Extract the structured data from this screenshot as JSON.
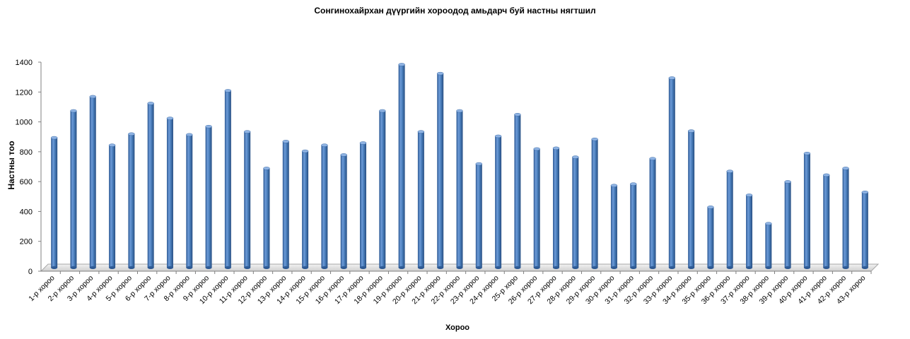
{
  "chart_data": {
    "type": "bar",
    "title": "Сонгинохайрхан дүүргийн хороодод амьдарч буй настны нягтшил",
    "xlabel": "Хороо",
    "ylabel": "Настны тоо",
    "ylim": [
      0,
      1400
    ],
    "yticks": [
      0,
      200,
      400,
      600,
      800,
      1000,
      1200,
      1400
    ],
    "grid": false,
    "legend": "none",
    "bar_color": "#4a7ebb",
    "categories": [
      "1-р хороо",
      "2-р хороо",
      "3-р хороо",
      "4-р хороо",
      "5-р хороо",
      "6-р хороо",
      "7-р хороо",
      "8-р хороо",
      "9-р хороо",
      "10-р хороо",
      "11-р хороо",
      "12-р хороо",
      "13-р хороо",
      "14-р хороо",
      "15-р хороо",
      "16-р хороо",
      "17-р хороо",
      "18-р хороо",
      "19-р хороо",
      "20-р хороо",
      "21-р хороо",
      "22-р хороо",
      "23-р хороо",
      "24-р хороо",
      "25-р хоро",
      "26-р хороо",
      "27-р хороо",
      "28-р хороо",
      "29-р хороо",
      "30-р хороо",
      "31-р хороо",
      "32-р хороо",
      "33-р хороо",
      "34-р хороо",
      "35-р хороо",
      "36-р хороо",
      "37-р хороо",
      "38-р хороо",
      "39-р хороо",
      "40-р хороо",
      "41-р хороо",
      "42-р хороо",
      "43-р хороо"
    ],
    "values": [
      870,
      1050,
      1145,
      820,
      895,
      1100,
      1000,
      890,
      945,
      1185,
      910,
      665,
      845,
      780,
      820,
      755,
      835,
      1050,
      1360,
      910,
      1300,
      1050,
      695,
      880,
      1025,
      795,
      800,
      740,
      860,
      550,
      560,
      730,
      1270,
      915,
      405,
      645,
      485,
      295,
      575,
      765,
      620,
      665,
      505
    ]
  }
}
